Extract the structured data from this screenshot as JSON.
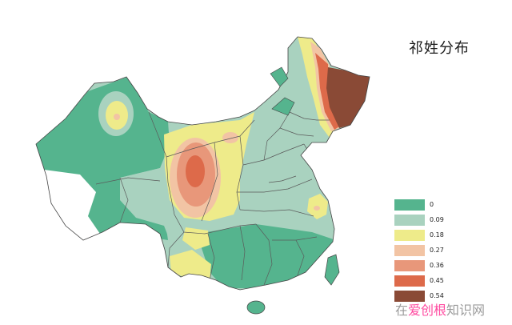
{
  "title": "祁姓分布",
  "legend": [
    {
      "label": "0",
      "color": "#55b48e"
    },
    {
      "label": "0.09",
      "color": "#a9d2bf"
    },
    {
      "label": "0.18",
      "color": "#eeeb8a"
    },
    {
      "label": "0.27",
      "color": "#f2c4a4"
    },
    {
      "label": "0.36",
      "color": "#e8977a"
    },
    {
      "label": "0.45",
      "color": "#dd6a4a"
    },
    {
      "label": "0.54",
      "color": "#8a4a36"
    }
  ],
  "watermark": {
    "prefix": "在",
    "accent": "爱创根",
    "suffix": "知识网"
  }
}
